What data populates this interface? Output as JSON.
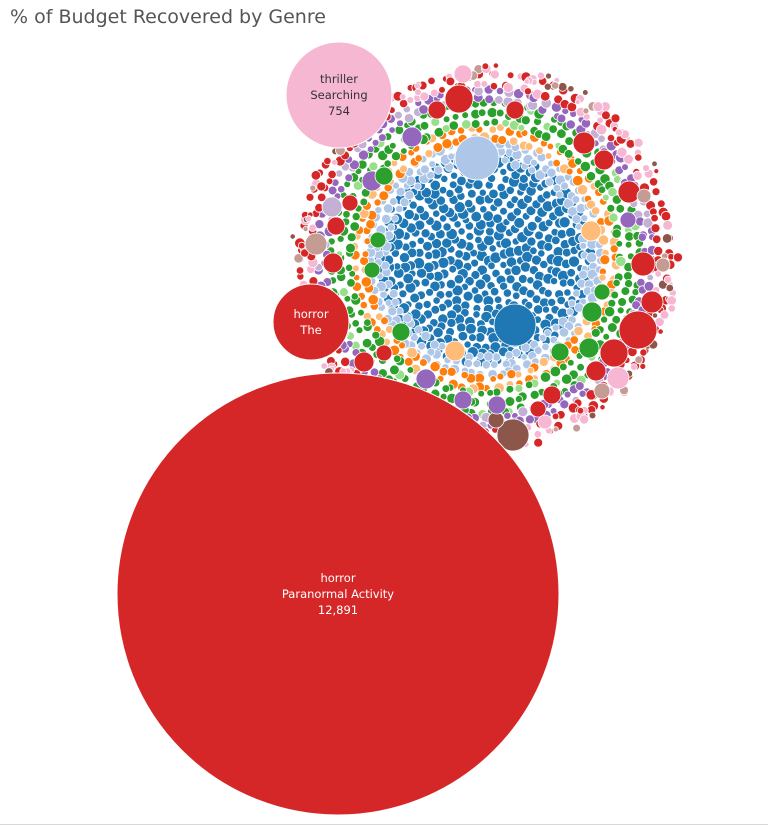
{
  "chart_data": {
    "type": "bubble",
    "title": "% of Budget Recovered by Genre",
    "legend": "none",
    "grid": false,
    "labeled_bubbles": [
      {
        "genre": "thriller",
        "title": "Searching",
        "value": 754,
        "value_label": "754",
        "color": "#F5B7D2"
      },
      {
        "genre": "horror",
        "title": "The",
        "value": 0,
        "value_label": "",
        "color": "#D62728"
      },
      {
        "genre": "horror",
        "title": "Paranormal Activity",
        "value": 12891,
        "value_label": "12,891",
        "color": "#D62728"
      }
    ],
    "palette": {
      "dark_blue": "#1F77B4",
      "light_blue": "#AEC7E8",
      "orange": "#FF7F0E",
      "light_orange": "#FFBB78",
      "green": "#2CA02C",
      "light_green": "#98DF8A",
      "red": "#D62728",
      "purple": "#9467BD",
      "light_purple": "#C5B0D5",
      "brown": "#8C564B",
      "light_brown": "#C49C94",
      "pink": "#F7B6D2"
    }
  }
}
